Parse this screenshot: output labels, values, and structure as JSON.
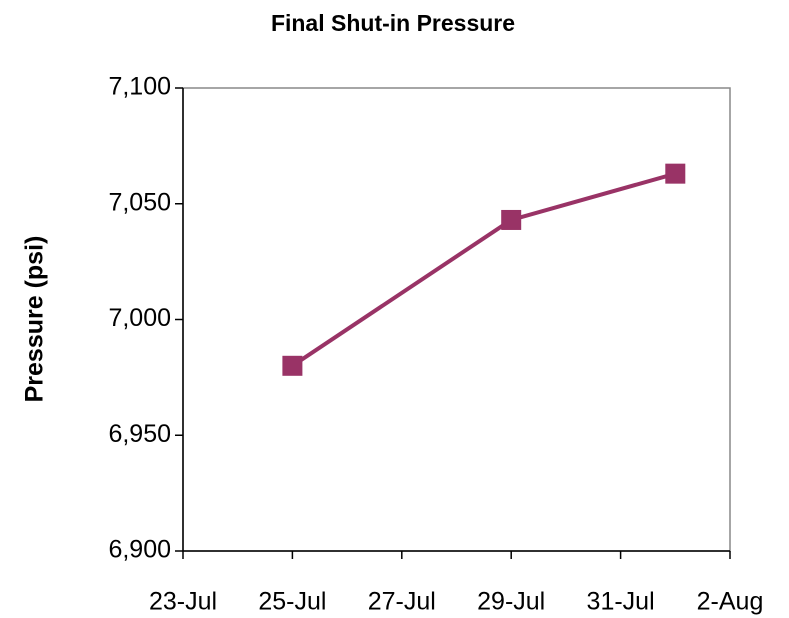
{
  "chart_data": {
    "type": "line",
    "title": "Final Shut-in Pressure",
    "y_label": "Pressure (psi)",
    "x": [
      "25-Jul",
      "29-Jul",
      "1-Aug"
    ],
    "series": [
      {
        "name": "Final Shut-in Pressure",
        "color": "#993366",
        "values": [
          6980,
          7043,
          7063
        ]
      }
    ],
    "xlim": [
      "23-Jul",
      "2-Aug"
    ],
    "xticks": [
      "23-Jul",
      "25-Jul",
      "27-Jul",
      "29-Jul",
      "31-Jul",
      "2-Aug"
    ],
    "ylim": [
      6900,
      7100
    ],
    "yticks": [
      {
        "value": 6900,
        "label": "6,900"
      },
      {
        "value": 6950,
        "label": "6,950"
      },
      {
        "value": 7000,
        "label": "7,000"
      },
      {
        "value": 7050,
        "label": "7,050"
      },
      {
        "value": 7100,
        "label": "7,100"
      }
    ],
    "grid": false,
    "legend": false
  }
}
